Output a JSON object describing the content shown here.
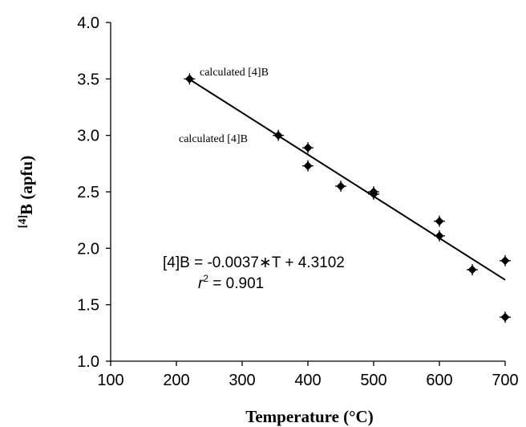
{
  "chart_data": {
    "type": "scatter",
    "title": "",
    "xlabel": "Temperature (°C)",
    "ylabel_superscript": "[4]",
    "ylabel_main": "B (apfu)",
    "xlim": [
      100,
      700
    ],
    "ylim": [
      1.0,
      4.0
    ],
    "xticks": [
      "100",
      "200",
      "300",
      "400",
      "500",
      "600",
      "700"
    ],
    "yticks": [
      "1.0",
      "1.5",
      "2.0",
      "2.5",
      "3.0",
      "3.5",
      "4.0"
    ],
    "grid": false,
    "legend": "none",
    "series": [
      {
        "x": [
          220,
          355,
          400,
          400,
          450,
          500,
          500,
          600,
          600,
          650,
          700,
          700
        ],
        "y": [
          3.5,
          3.0,
          2.89,
          2.73,
          2.55,
          2.5,
          2.48,
          2.24,
          2.11,
          1.81,
          1.89,
          1.39
        ],
        "marker": "diamond",
        "color": "#000000"
      }
    ],
    "trendline": {
      "slope": -0.0037,
      "intercept": 4.3102,
      "x_start": 220,
      "x_end": 700
    },
    "annotations": {
      "point_label_1": "calculated [4]B",
      "point_label_2": "calculated [4]B",
      "equation": "[4]B = -0.0037∗T + 4.3102",
      "r2_symbol": "r",
      "r2_exponent": "2",
      "r2_value": " = 0.901"
    }
  }
}
